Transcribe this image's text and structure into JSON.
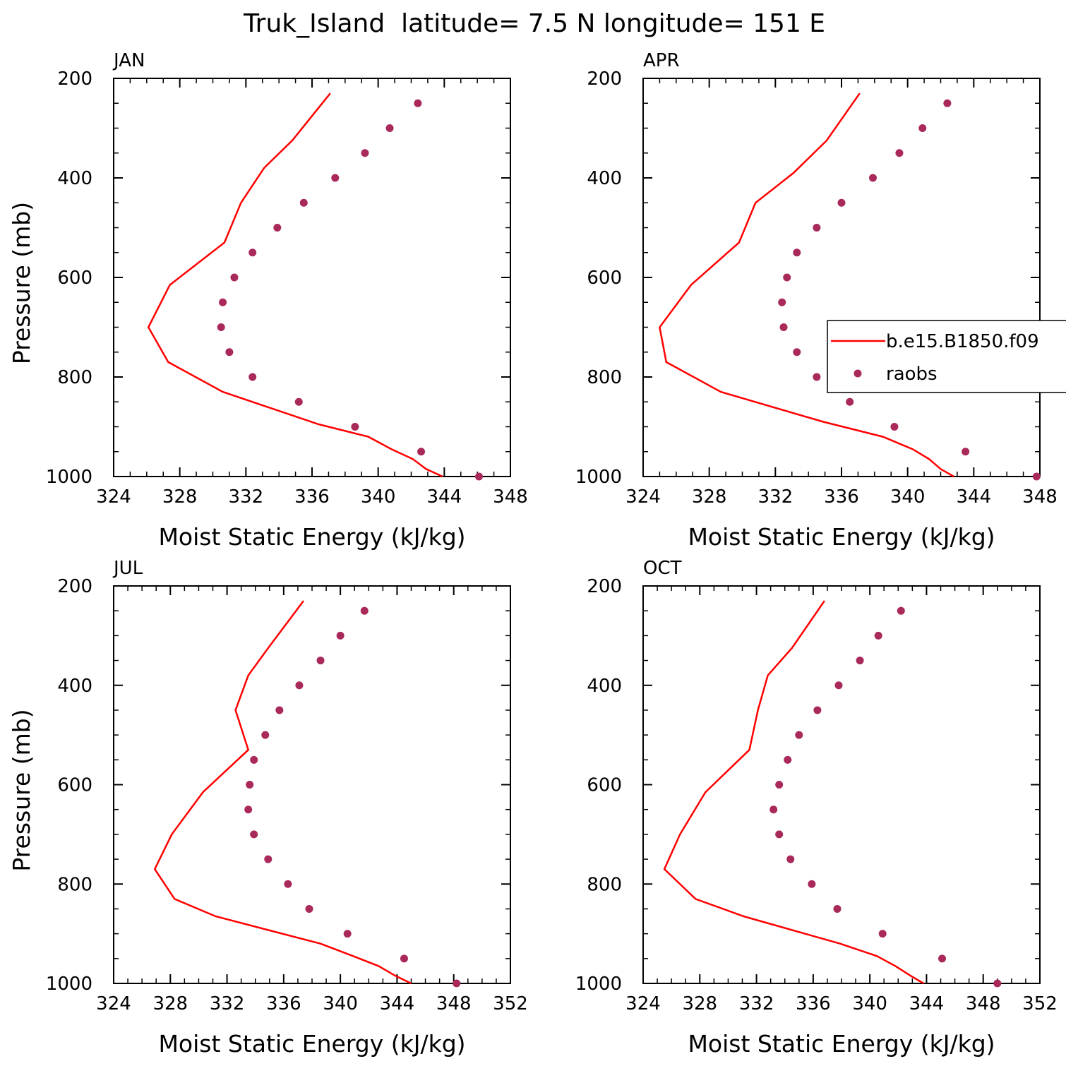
{
  "figure": {
    "title": "Truk_Island  latitude= 7.5 N longitude= 151 E",
    "line_color": "#ff0000",
    "marker_color": "#a8295a"
  },
  "legend": {
    "placement": "right-middle of APR panel",
    "entries": [
      {
        "label": "b.e15.B1850.f09",
        "type": "line"
      },
      {
        "label": "raobs",
        "type": "marker"
      }
    ]
  },
  "chart_data": [
    {
      "type": "line",
      "title": "JAN",
      "xlabel": "Moist Static Energy (kJ/kg)",
      "ylabel": "Pressure (mb)",
      "xlim": [
        324,
        348
      ],
      "ylim": [
        1000,
        200
      ],
      "xticks": [
        324,
        328,
        332,
        336,
        340,
        344,
        348
      ],
      "yticks": [
        200,
        400,
        600,
        800,
        1000
      ],
      "series": [
        {
          "name": "b.e15.B1850.f09",
          "kind": "line",
          "x": [
            337.1,
            334.8,
            333.1,
            331.7,
            330.7,
            327.4,
            326.1,
            327.3,
            330.6,
            336.4,
            339.4,
            340.8,
            342.1,
            342.9,
            343.9
          ],
          "y": [
            230,
            325,
            380,
            450,
            530,
            615,
            700,
            770,
            830,
            895,
            920,
            945,
            965,
            985,
            1000
          ]
        },
        {
          "name": "raobs",
          "kind": "scatter",
          "x": [
            342.4,
            340.7,
            339.2,
            337.4,
            335.5,
            333.9,
            332.4,
            331.3,
            330.6,
            330.5,
            331.0,
            332.4,
            335.2,
            338.6,
            342.6,
            346.1
          ],
          "y": [
            250,
            300,
            350,
            400,
            450,
            500,
            550,
            600,
            650,
            700,
            750,
            800,
            850,
            900,
            950,
            1000
          ]
        }
      ]
    },
    {
      "type": "line",
      "title": "APR",
      "xlabel": "Moist Static Energy (kJ/kg)",
      "ylabel": "",
      "xlim": [
        324,
        348
      ],
      "ylim": [
        1000,
        200
      ],
      "xticks": [
        324,
        328,
        332,
        336,
        340,
        344,
        348
      ],
      "yticks": [
        200,
        400,
        600,
        800,
        1000
      ],
      "series": [
        {
          "name": "b.e15.B1850.f09",
          "kind": "line",
          "x": [
            337.1,
            335.1,
            333.1,
            330.8,
            329.8,
            326.9,
            325.0,
            325.4,
            328.7,
            334.9,
            338.5,
            340.3,
            341.3,
            342.0,
            342.8
          ],
          "y": [
            230,
            325,
            390,
            450,
            530,
            615,
            700,
            770,
            830,
            890,
            920,
            945,
            965,
            985,
            1000
          ]
        },
        {
          "name": "raobs",
          "kind": "scatter",
          "x": [
            342.4,
            340.9,
            339.5,
            337.9,
            336.0,
            334.5,
            333.3,
            332.7,
            332.4,
            332.5,
            333.3,
            334.5,
            336.5,
            339.2,
            343.5,
            347.8
          ],
          "y": [
            250,
            300,
            350,
            400,
            450,
            500,
            550,
            600,
            650,
            700,
            750,
            800,
            850,
            900,
            950,
            1000
          ]
        }
      ]
    },
    {
      "type": "line",
      "title": "JUL",
      "xlabel": "Moist Static Energy (kJ/kg)",
      "ylabel": "Pressure (mb)",
      "xlim": [
        324,
        352
      ],
      "ylim": [
        1000,
        200
      ],
      "xticks": [
        324,
        328,
        332,
        336,
        340,
        344,
        348,
        352
      ],
      "yticks": [
        200,
        400,
        600,
        800,
        1000
      ],
      "series": [
        {
          "name": "b.e15.B1850.f09",
          "kind": "line",
          "x": [
            337.4,
            334.9,
            333.5,
            332.6,
            333.5,
            330.3,
            328.1,
            326.9,
            328.3,
            331.2,
            338.6,
            340.9,
            342.7,
            343.9,
            345.0
          ],
          "y": [
            230,
            325,
            380,
            450,
            530,
            615,
            700,
            770,
            830,
            865,
            920,
            945,
            965,
            985,
            1000
          ]
        },
        {
          "name": "raobs",
          "kind": "scatter",
          "x": [
            341.7,
            340.0,
            338.6,
            337.1,
            335.7,
            334.7,
            333.9,
            333.6,
            333.5,
            333.9,
            334.9,
            336.3,
            337.8,
            340.5,
            344.5,
            348.2
          ],
          "y": [
            250,
            300,
            350,
            400,
            450,
            500,
            550,
            600,
            650,
            700,
            750,
            800,
            850,
            900,
            950,
            1000
          ]
        }
      ]
    },
    {
      "type": "line",
      "title": "OCT",
      "xlabel": "Moist Static Energy (kJ/kg)",
      "ylabel": "",
      "xlim": [
        324,
        352
      ],
      "ylim": [
        1000,
        200
      ],
      "xticks": [
        324,
        328,
        332,
        336,
        340,
        344,
        348,
        352
      ],
      "yticks": [
        200,
        400,
        600,
        800,
        1000
      ],
      "series": [
        {
          "name": "b.e15.B1850.f09",
          "kind": "line",
          "x": [
            336.8,
            334.5,
            332.8,
            332.1,
            331.5,
            328.4,
            326.6,
            325.5,
            327.7,
            331.1,
            337.9,
            340.5,
            341.8,
            342.9,
            343.8
          ],
          "y": [
            230,
            325,
            380,
            450,
            530,
            615,
            700,
            770,
            830,
            865,
            920,
            945,
            965,
            985,
            1000
          ]
        },
        {
          "name": "raobs",
          "kind": "scatter",
          "x": [
            342.2,
            340.6,
            339.3,
            337.8,
            336.3,
            335.0,
            334.2,
            333.6,
            333.2,
            333.6,
            334.4,
            335.9,
            337.7,
            340.9,
            345.1,
            349.0
          ],
          "y": [
            250,
            300,
            350,
            400,
            450,
            500,
            550,
            600,
            650,
            700,
            750,
            800,
            850,
            900,
            950,
            1000
          ]
        }
      ]
    }
  ]
}
